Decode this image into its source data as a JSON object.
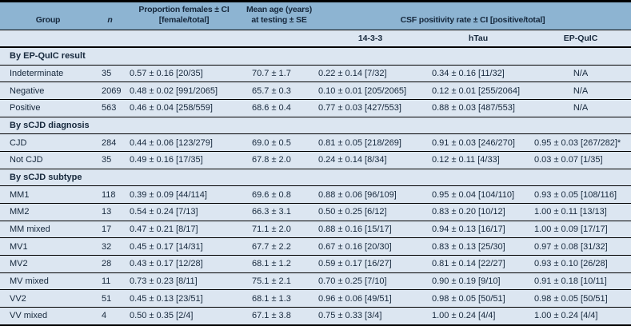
{
  "colors": {
    "header_bg": "#8db4d2",
    "row_bg": "#dce6f1",
    "border": "#000000",
    "text": "#16283c"
  },
  "table": {
    "header": {
      "group": "Group",
      "n": "n",
      "proportion": "Proportion females ± CI\n[female/total]",
      "mean_age": "Mean age (years)\nat testing ± SE",
      "csf": "CSF positivity rate ± CI [positive/total]",
      "subcols": [
        "14-3-3",
        "hTau",
        "EP-QuIC"
      ]
    },
    "rows": [
      {
        "type": "section",
        "label": "By EP-QuIC result"
      },
      {
        "type": "data",
        "cells": [
          "Indeterminate",
          "35",
          "0.57 ± 0.16 [20/35]",
          "70.7 ± 1.7",
          "0.22 ± 0.14 [7/32]",
          "0.34 ± 0.16 [11/32]",
          "N/A"
        ]
      },
      {
        "type": "data",
        "cells": [
          "Negative",
          "2069",
          "0.48 ± 0.02 [991/2065]",
          "65.7 ± 0.3",
          "0.10 ± 0.01 [205/2065]",
          "0.12 ± 0.01 [255/2064]",
          "N/A"
        ]
      },
      {
        "type": "data",
        "cells": [
          "Positive",
          "563",
          "0.46 ± 0.04 [258/559]",
          "68.6 ± 0.4",
          "0.77 ± 0.03 [427/553]",
          "0.88 ± 0.03 [487/553]",
          "N/A"
        ]
      },
      {
        "type": "section",
        "label": "By sCJD diagnosis"
      },
      {
        "type": "data",
        "cells": [
          "CJD",
          "284",
          "0.44 ± 0.06 [123/279]",
          "69.0 ± 0.5",
          "0.81 ± 0.05 [218/269]",
          "0.91 ± 0.03 [246/270]",
          "0.95 ± 0.03 [267/282]*"
        ]
      },
      {
        "type": "data",
        "cells": [
          "Not CJD",
          "35",
          "0.49 ± 0.16 [17/35]",
          "67.8 ± 2.0",
          "0.24 ± 0.14 [8/34]",
          "0.12 ± 0.11 [4/33]",
          "0.03 ± 0.07 [1/35]"
        ]
      },
      {
        "type": "section",
        "label": "By sCJD subtype"
      },
      {
        "type": "data",
        "cells": [
          "MM1",
          "118",
          "0.39 ± 0.09 [44/114]",
          "69.6 ± 0.8",
          "0.88 ± 0.06 [96/109]",
          "0.95 ± 0.04 [104/110]",
          "0.93 ± 0.05 [108/116]"
        ]
      },
      {
        "type": "data",
        "cells": [
          "MM2",
          "13",
          "0.54 ± 0.24 [7/13]",
          "66.3 ± 3.1",
          "0.50 ± 0.25 [6/12]",
          "0.83 ± 0.20 [10/12]",
          "1.00 ± 0.11 [13/13]"
        ]
      },
      {
        "type": "data",
        "cells": [
          "MM mixed",
          "17",
          "0.47 ± 0.21 [8/17]",
          "71.1 ± 2.0",
          "0.88 ± 0.16 [15/17]",
          "0.94 ± 0.13 [16/17]",
          "1.00 ± 0.09 [17/17]"
        ]
      },
      {
        "type": "data",
        "cells": [
          "MV1",
          "32",
          "0.45 ± 0.17 [14/31]",
          "67.7 ± 2.2",
          "0.67 ± 0.16 [20/30]",
          "0.83 ± 0.13 [25/30]",
          "0.97 ± 0.08 [31/32]"
        ]
      },
      {
        "type": "data",
        "cells": [
          "MV2",
          "28",
          "0.43 ± 0.17 [12/28]",
          "68.1 ± 1.2",
          "0.59 ± 0.17 [16/27]",
          "0.81 ± 0.14 [22/27]",
          "0.93 ± 0.10 [26/28]"
        ]
      },
      {
        "type": "data",
        "cells": [
          "MV mixed",
          "11",
          "0.73 ± 0.23 [8/11]",
          "75.1 ± 2.1",
          "0.70 ± 0.25 [7/10]",
          "0.90 ± 0.19 [9/10]",
          "0.91 ± 0.18 [10/11]"
        ]
      },
      {
        "type": "data",
        "cells": [
          "VV2",
          "51",
          "0.45 ± 0.13 [23/51]",
          "68.1 ± 1.3",
          "0.96 ± 0.06 [49/51]",
          "0.98 ± 0.05 [50/51]",
          "0.98 ± 0.05 [50/51]"
        ]
      },
      {
        "type": "data",
        "cells": [
          "VV mixed",
          "4",
          "0.50 ± 0.35 [2/4]",
          "67.1 ± 3.8",
          "0.75 ± 0.33 [3/4]",
          "1.00 ± 0.24 [4/4]",
          "1.00 ± 0.24 [4/4]"
        ]
      }
    ]
  }
}
